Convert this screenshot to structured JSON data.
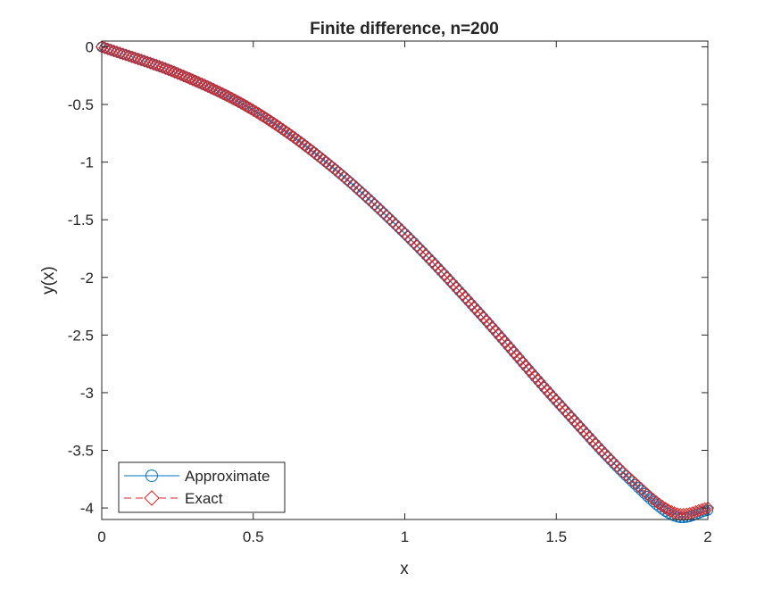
{
  "chart_data": {
    "type": "line",
    "title": "Finite difference, n=200",
    "xlabel": "x",
    "ylabel": "y(x)",
    "xlim": [
      0,
      2
    ],
    "ylim": [
      -4.1,
      0.05
    ],
    "xticks": [
      0,
      0.5,
      1,
      1.5,
      2
    ],
    "xtick_labels": [
      "0",
      "0.5",
      "1",
      "1.5",
      "2"
    ],
    "yticks": [
      0,
      -0.5,
      -1,
      -1.5,
      -2,
      -2.5,
      -3,
      -3.5,
      -4
    ],
    "ytick_labels": [
      "0",
      "-0.5",
      "-1",
      "-1.5",
      "-2",
      "-2.5",
      "-3",
      "-3.5",
      "-4"
    ],
    "grid": false,
    "legend_position": "bottom-left",
    "n_points": 201,
    "key_points": {
      "x": [
        0,
        0.25,
        0.5,
        0.75,
        1.0,
        1.25,
        1.5,
        1.75,
        1.9,
        2.0
      ],
      "y": [
        0,
        -0.23,
        -0.55,
        -1.02,
        -1.62,
        -2.32,
        -3.07,
        -3.76,
        -4.05,
        -4.0
      ]
    },
    "series": [
      {
        "name": "Approximate",
        "color": "#0072BD",
        "marker": "circle",
        "line_style": "solid",
        "min_y": -4.08
      },
      {
        "name": "Exact",
        "color": "#D62728",
        "marker": "diamond",
        "line_style": "dashed",
        "min_y": -4.04
      }
    ]
  }
}
